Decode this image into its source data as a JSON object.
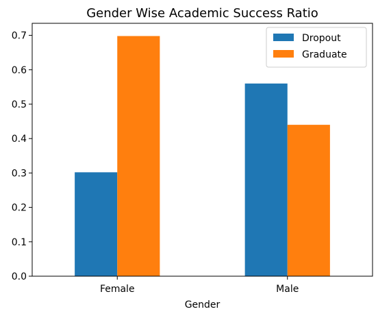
{
  "chart_data": {
    "type": "bar",
    "title": "Gender Wise Academic Success Ratio",
    "xlabel": "Gender",
    "ylabel": "",
    "categories": [
      "Female",
      "Male"
    ],
    "series": [
      {
        "name": "Dropout",
        "values": [
          0.302,
          0.56
        ],
        "color": "#1f77b4"
      },
      {
        "name": "Graduate",
        "values": [
          0.698,
          0.44
        ],
        "color": "#ff7f0e"
      }
    ],
    "ylim": [
      0,
      0.735
    ],
    "yticks": [
      0.0,
      0.1,
      0.2,
      0.3,
      0.4,
      0.5,
      0.6,
      0.7
    ],
    "ytick_labels": [
      "0.0",
      "0.1",
      "0.2",
      "0.3",
      "0.4",
      "0.5",
      "0.6",
      "0.7"
    ],
    "legend_position": "top-right",
    "grid": false
  }
}
